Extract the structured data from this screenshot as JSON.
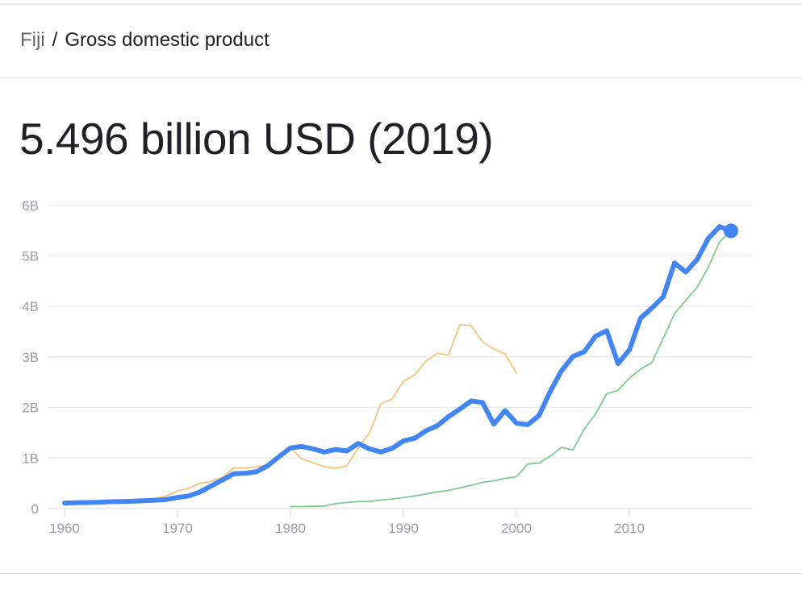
{
  "breadcrumb": {
    "root": "Fiji",
    "separator": "/",
    "current": "Gross domestic product"
  },
  "headline": "5.496 billion USD (2019)",
  "chart_data": {
    "type": "line",
    "title": "5.496 billion USD (2019)",
    "xlabel": "",
    "ylabel": "",
    "xlim": [
      1960,
      2019
    ],
    "ylim": [
      0,
      6
    ],
    "x_ticks": [
      1960,
      1970,
      1980,
      1990,
      2000,
      2010
    ],
    "x_tick_labels": [
      "1960",
      "1970",
      "1980",
      "1990",
      "2000",
      "2010"
    ],
    "y_ticks": [
      0,
      1,
      2,
      3,
      4,
      5,
      6
    ],
    "y_tick_labels": [
      "0",
      "1B",
      "2B",
      "3B",
      "4B",
      "5B",
      "6B"
    ],
    "grid": true,
    "series": [
      {
        "name": "Fiji",
        "color": "#4285f4",
        "start_year": 1960,
        "highlight_last": true,
        "values": [
          0.11,
          0.115,
          0.12,
          0.125,
          0.135,
          0.14,
          0.145,
          0.155,
          0.165,
          0.18,
          0.22,
          0.25,
          0.33,
          0.45,
          0.57,
          0.69,
          0.7,
          0.73,
          0.85,
          1.03,
          1.2,
          1.23,
          1.18,
          1.12,
          1.17,
          1.14,
          1.29,
          1.18,
          1.12,
          1.19,
          1.34,
          1.39,
          1.54,
          1.64,
          1.82,
          1.97,
          2.13,
          2.1,
          1.67,
          1.94,
          1.69,
          1.66,
          1.84,
          2.32,
          2.73,
          3.01,
          3.1,
          3.41,
          3.52,
          2.87,
          3.14,
          3.77,
          3.97,
          4.19,
          4.86,
          4.68,
          4.93,
          5.35,
          5.58,
          5.496
        ]
      },
      {
        "name": "",
        "color": "#f6c37a",
        "start_year": 1960,
        "values": [
          0.11,
          0.115,
          0.12,
          0.125,
          0.135,
          0.14,
          0.145,
          0.16,
          0.2,
          0.25,
          0.35,
          0.4,
          0.5,
          0.54,
          0.62,
          0.81,
          0.8,
          0.83,
          0.86,
          1.05,
          1.2,
          0.98,
          0.91,
          0.83,
          0.8,
          0.85,
          1.2,
          1.5,
          2.07,
          2.17,
          2.52,
          2.65,
          2.92,
          3.07,
          3.04,
          3.64,
          3.62,
          3.3,
          3.16,
          3.06,
          2.68
        ]
      },
      {
        "name": "",
        "color": "#81c995",
        "start_year": 1980,
        "values": [
          0.04,
          0.04,
          0.045,
          0.05,
          0.1,
          0.12,
          0.14,
          0.14,
          0.17,
          0.19,
          0.22,
          0.25,
          0.29,
          0.33,
          0.36,
          0.41,
          0.46,
          0.52,
          0.55,
          0.6,
          0.63,
          0.88,
          0.9,
          1.04,
          1.21,
          1.16,
          1.57,
          1.87,
          2.27,
          2.34,
          2.58,
          2.76,
          2.89,
          3.37,
          3.86,
          4.12,
          4.38,
          4.78,
          5.28,
          5.5
        ]
      }
    ]
  }
}
